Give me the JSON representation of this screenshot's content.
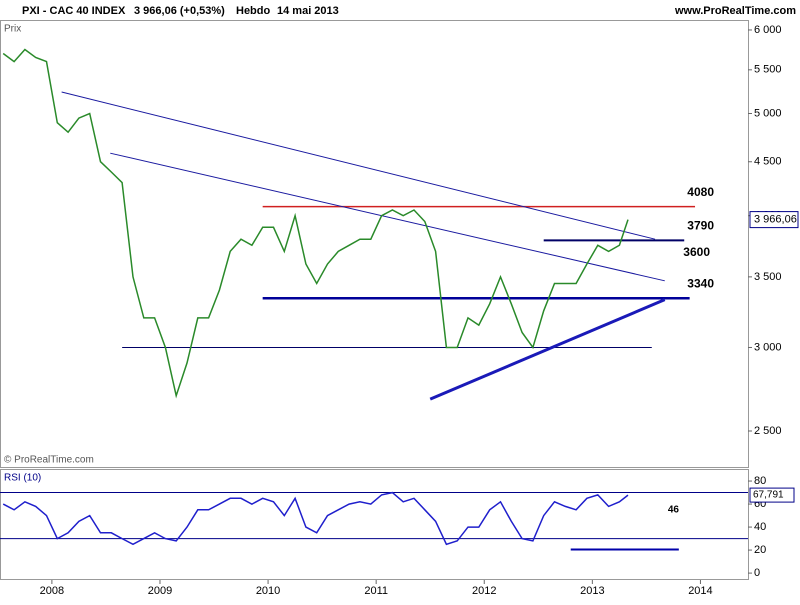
{
  "header": {
    "symbol": "PXI - CAC 40 INDEX",
    "quote": "3 966,06 (+0,53%)",
    "period": "Hebdo",
    "date": "14 mai 2013",
    "site": "www.ProRealTime.com"
  },
  "chart_data": [
    {
      "type": "line",
      "title": "Prix",
      "credit": "© ProRealTime.com",
      "log_scale": true,
      "color": "#2a8a2a",
      "x": [
        2007.55,
        2007.65,
        2007.75,
        2007.85,
        2007.95,
        2008.05,
        2008.15,
        2008.25,
        2008.35,
        2008.45,
        2008.55,
        2008.65,
        2008.75,
        2008.85,
        2008.95,
        2009.05,
        2009.15,
        2009.25,
        2009.35,
        2009.45,
        2009.55,
        2009.65,
        2009.75,
        2009.85,
        2009.95,
        2010.05,
        2010.15,
        2010.25,
        2010.35,
        2010.45,
        2010.55,
        2010.65,
        2010.75,
        2010.85,
        2010.95,
        2011.05,
        2011.15,
        2011.25,
        2011.35,
        2011.45,
        2011.55,
        2011.65,
        2011.75,
        2011.85,
        2011.95,
        2012.05,
        2012.15,
        2012.25,
        2012.35,
        2012.45,
        2012.55,
        2012.65,
        2012.75,
        2012.85,
        2012.95,
        2013.05,
        2013.15,
        2013.25,
        2013.33
      ],
      "values": [
        5700,
        5600,
        5750,
        5650,
        5600,
        4900,
        4800,
        4950,
        5000,
        4500,
        4400,
        4300,
        3500,
        3200,
        3200,
        3000,
        2700,
        2900,
        3200,
        3200,
        3400,
        3700,
        3800,
        3750,
        3900,
        3900,
        3700,
        4000,
        3600,
        3450,
        3600,
        3700,
        3750,
        3800,
        3800,
        4000,
        4050,
        4000,
        4050,
        3950,
        3700,
        3000,
        3000,
        3200,
        3150,
        3300,
        3500,
        3300,
        3100,
        3000,
        3250,
        3450,
        3450,
        3450,
        3600,
        3750,
        3700,
        3750,
        3966.06
      ],
      "last_value_label": "3 966,06",
      "xlim": [
        2007.52,
        2014.44
      ],
      "ylim": [
        2306,
        6132
      ],
      "yticks": [
        {
          "value": 2500,
          "label": "2 500"
        },
        {
          "value": 3000,
          "label": "3 000"
        },
        {
          "value": 3500,
          "label": "3 500"
        },
        {
          "value": 4000,
          "label": "4 000"
        },
        {
          "value": 4500,
          "label": "4 500"
        },
        {
          "value": 5000,
          "label": "5 000"
        },
        {
          "value": 5500,
          "label": "5 500"
        },
        {
          "value": 6000,
          "label": "6 000"
        }
      ],
      "levels": [
        {
          "value": 4080,
          "label": "4080",
          "x": [
            2009.95,
            2013.95
          ],
          "color": "#d02020",
          "width": 1.5
        },
        {
          "value": 3790,
          "label": "3790",
          "x": [
            2012.55,
            2013.85
          ],
          "color": "#000066",
          "width": 2
        },
        {
          "value": 3340,
          "label": "3340",
          "x": [
            2009.95,
            2013.9
          ],
          "color": "#000099",
          "width": 2.5
        },
        {
          "value": 3000,
          "x": [
            2008.65,
            2013.55
          ],
          "color": "#000066",
          "width": 1
        }
      ],
      "trendlines": [
        {
          "x": [
            2008.09,
            2013.58
          ],
          "y": [
            5240,
            3800
          ],
          "color": "#1a1aa0",
          "width": 1
        },
        {
          "x": [
            2008.54,
            2013.67
          ],
          "y": [
            4585,
            3470
          ],
          "label": "3600",
          "color": "#1a1aa0",
          "width": 1
        },
        {
          "x": [
            2011.5,
            2013.67
          ],
          "y": [
            2680,
            3330
          ],
          "color": "#1a1ab8",
          "width": 3
        }
      ]
    },
    {
      "type": "line",
      "title": "RSI (10)",
      "color": "#1f1fcc",
      "values": [
        60,
        55,
        62,
        58,
        50,
        30,
        35,
        45,
        50,
        35,
        35,
        30,
        25,
        30,
        35,
        30,
        28,
        40,
        55,
        55,
        60,
        65,
        65,
        60,
        65,
        62,
        50,
        65,
        40,
        35,
        50,
        55,
        60,
        62,
        60,
        68,
        70,
        62,
        65,
        55,
        45,
        25,
        28,
        40,
        40,
        55,
        62,
        45,
        30,
        28,
        50,
        62,
        58,
        55,
        65,
        68,
        58,
        62,
        67.791
      ],
      "last_value_label": "67,791",
      "annotation": "46",
      "xlim": [
        2007.52,
        2014.44
      ],
      "ylim": [
        -6,
        89.6
      ],
      "yticks": [
        0,
        20,
        40,
        60,
        80
      ],
      "xticks": [
        2008,
        2009,
        2010,
        2011,
        2012,
        2013,
        2014
      ],
      "levels": [
        {
          "value": 70,
          "color": "#000088"
        },
        {
          "value": 30,
          "color": "#000088"
        }
      ],
      "segment": {
        "x": [
          2012.8,
          2013.8
        ],
        "y": 20.5,
        "color": "#0000aa"
      }
    }
  ]
}
